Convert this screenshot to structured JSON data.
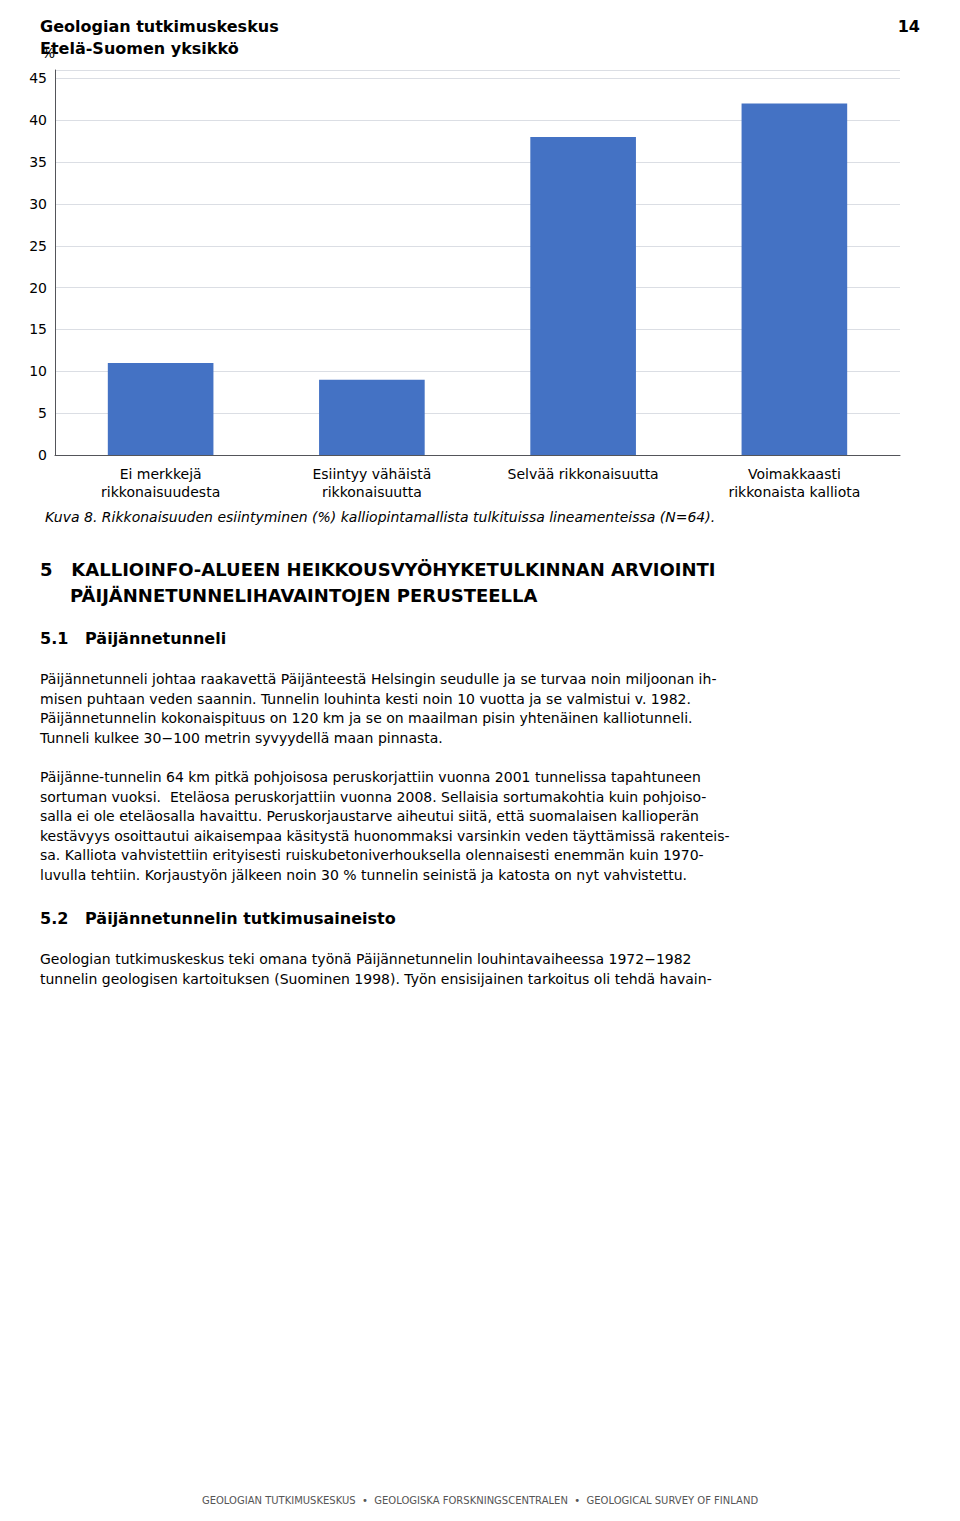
{
  "chart_data": {
    "type": "bar",
    "title": "Kuva 8. Rikkonaisuuden esiintyminen (%) kalliopintamallista tulkituissa lineamenteissa (N=64).",
    "categories": [
      "Ei merkkejä\nrikkonaisuudesta",
      "Esiintyy vähäistä\nrikkonaisuutta",
      "Selvää rikkonaisuutta",
      "Voimakkaasti\nrikkonaista kalliota"
    ],
    "values": [
      11,
      9,
      38,
      42
    ],
    "color": "#4472C4",
    "ylabel": "%",
    "ylim": [
      0,
      46
    ],
    "yticks": [
      0,
      5,
      10,
      15,
      20,
      25,
      30,
      35,
      40,
      45
    ],
    "grid": true
  },
  "page": {
    "header": [
      "Geologian tutkimuskeskus",
      "Etelä-Suomen yksikkö"
    ],
    "page_number": "14",
    "section": [
      "5   KALLIOINFO-ALUEEN HEIKKOUSVYÖHYKETULKINNAN ARVIOINTI",
      "PÄIJÄNNETUNNELIHAVAINTOJEN PERUSTEELLA"
    ],
    "blocks": [
      {
        "heading": "5.1   Päijännetunneli",
        "paragraphs": [
          [
            "Päijännetunneli johtaa raakavettä Päijänteestä Helsingin seudulle ja se turvaa noin miljoonan ih-",
            "misen puhtaan veden saannin. Tunnelin louhinta kesti noin 10 vuotta ja se valmistui v. 1982.",
            "Päijännetunnelin kokonaispituus on 120 km ja se on maailman pisin yhtenäinen kalliotunneli.",
            "Tunneli kulkee 30−100 metrin syvyydellä maan pinnasta."
          ],
          [
            "Päijänne-tunnelin 64 km pitkä pohjoisosa peruskorjattiin vuonna 2001 tunnelissa tapahtuneen",
            "sortuman vuoksi.  Eteläosa peruskorjattiin vuonna 2008. Sellaisia sortumakohtia kuin pohjoiso-",
            "salla ei ole eteläosalla havaittu. Peruskorjaustarve aiheutui siitä, että suomalaisen kallioperän",
            "kestävyys osoittautui aikaisempaa käsitystä huonommaksi varsinkin veden täyttämissä rakenteis-",
            "sa. Kalliota vahvistettiin erityisesti ruiskubetoniverhouksella olennaisesti enemmän kuin 1970-",
            "luvulla tehtiin. Korjaustyön jälkeen noin 30 % tunnelin seinistä ja katosta on nyt vahvistettu."
          ]
        ]
      },
      {
        "heading": "5.2   Päijännetunnelin tutkimusaineisto",
        "paragraphs": [
          [
            "Geologian tutkimuskeskus teki omana työnä Päijännetunnelin louhintavaiheessa 1972−1982",
            "tunnelin geologisen kartoituksen (Suominen 1998). Työn ensisijainen tarkoitus oli tehdä havain-"
          ]
        ]
      }
    ],
    "footer": "GEOLOGIAN TUTKIMUSKESKUS  •  GEOLOGISKA FORSKNINGSCENTRALEN  •  GEOLOGICAL SURVEY OF FINLAND"
  }
}
